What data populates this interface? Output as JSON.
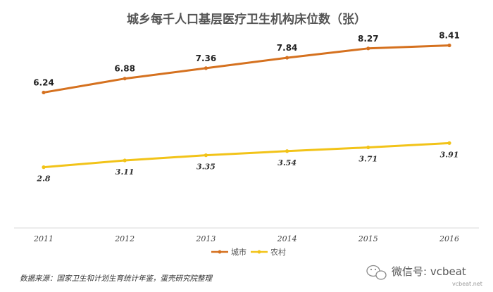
{
  "chart_data": {
    "type": "line",
    "title": "城乡每千人口基层医疗卫生机构床位数（张）",
    "categories": [
      "2011",
      "2012",
      "2013",
      "2014",
      "2015",
      "2016"
    ],
    "series": [
      {
        "name": "城市",
        "color": "#D5711F",
        "values": [
          6.24,
          6.88,
          7.36,
          7.84,
          8.27,
          8.41
        ],
        "labels": [
          "6.24",
          "6.88",
          "7.36",
          "7.84",
          "8.27",
          "8.41"
        ]
      },
      {
        "name": "农村",
        "color": "#F2C318",
        "values": [
          2.8,
          3.11,
          3.35,
          3.54,
          3.71,
          3.91
        ],
        "labels": [
          "2.8",
          "3.11",
          "3.35",
          "3.54",
          "3.71",
          "3.91"
        ]
      }
    ],
    "ylim": [
      0,
      10.5
    ],
    "grid": false,
    "legend_position": "bottom-center"
  },
  "source_note": "数据来源：国家卫生和计划生育统计年鉴，蛋壳研究院整理",
  "watermark": {
    "main": "微信号: vcbeat",
    "sub": "vcbeat.net",
    "icon": "wechat-icon"
  }
}
